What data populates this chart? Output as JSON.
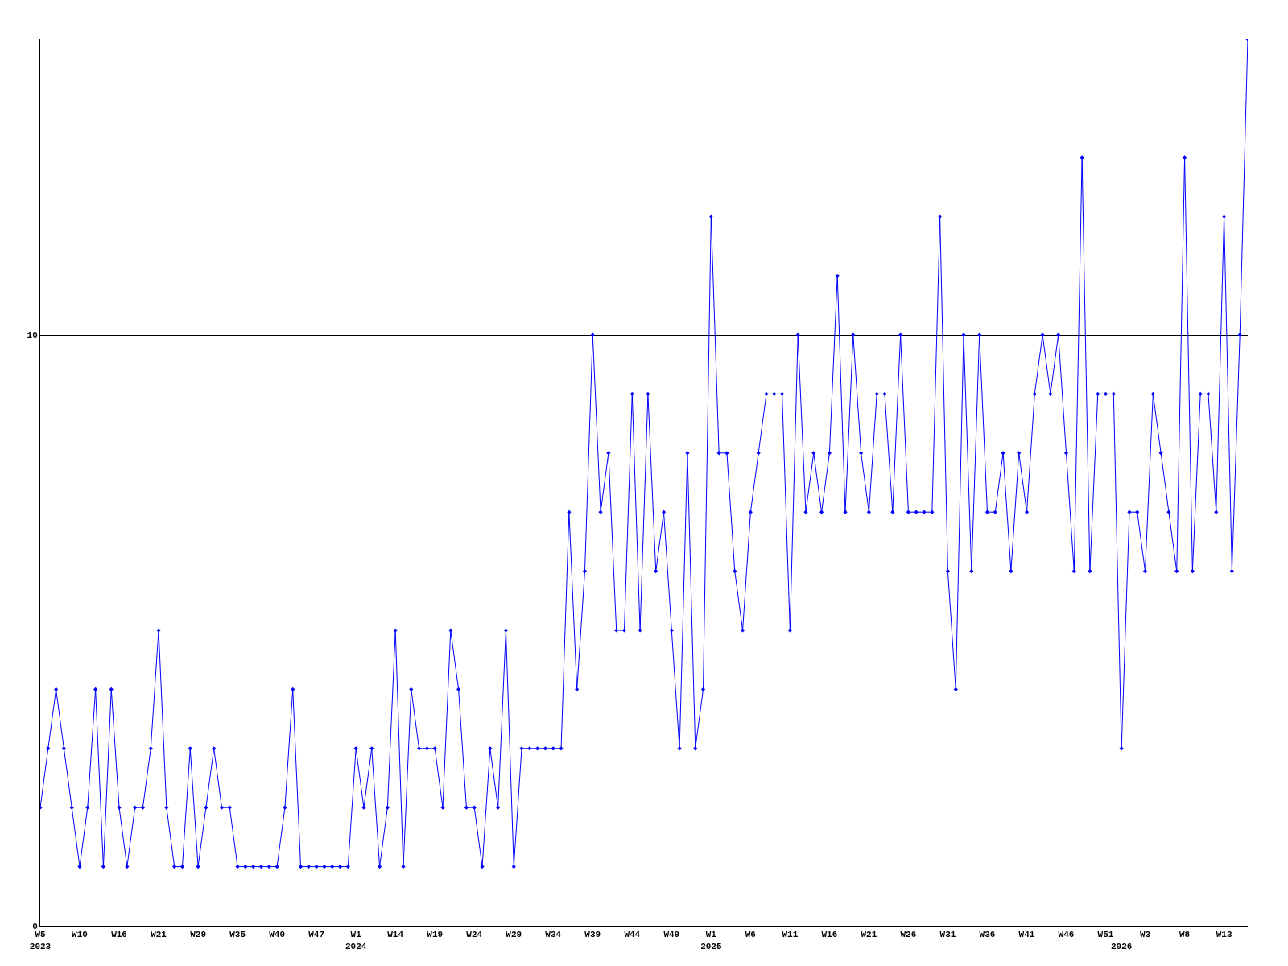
{
  "chart_data": {
    "type": "line",
    "categories": [
      "W5\n2023",
      null,
      null,
      null,
      null,
      "W10",
      null,
      null,
      null,
      null,
      "W16",
      null,
      null,
      null,
      null,
      "W21",
      null,
      null,
      null,
      null,
      "W29",
      null,
      null,
      null,
      null,
      "W35",
      null,
      null,
      null,
      null,
      "W40",
      null,
      null,
      null,
      null,
      "W47",
      null,
      null,
      null,
      null,
      "W1\n2024",
      null,
      null,
      null,
      null,
      "W14",
      null,
      null,
      null,
      null,
      "W19",
      null,
      null,
      null,
      null,
      "W24",
      null,
      null,
      null,
      null,
      "W29",
      null,
      null,
      null,
      null,
      "W34",
      null,
      null,
      null,
      null,
      "W39",
      null,
      null,
      null,
      null,
      "W44",
      null,
      null,
      null,
      null,
      "W49",
      null,
      null,
      null,
      null,
      "W1\n2025",
      null,
      null,
      null,
      null,
      "W6",
      null,
      null,
      null,
      null,
      "W11",
      null,
      null,
      null,
      null,
      "W16",
      null,
      null,
      null,
      null,
      "W21",
      null,
      null,
      null,
      null,
      "W26",
      null,
      null,
      null,
      null,
      "W31",
      null,
      null,
      null,
      null,
      "W36",
      null,
      null,
      null,
      null,
      "W41",
      null,
      null,
      null,
      null,
      "W46",
      null,
      null,
      null,
      null,
      "W51",
      null,
      "\n2026",
      null,
      null,
      "W3",
      null,
      null,
      null,
      null,
      "W8",
      null,
      null,
      null,
      null,
      "W13",
      null,
      null,
      null
    ],
    "series": [
      {
        "color": "#0000ff",
        "values": [
          2,
          3,
          4,
          3,
          2,
          1,
          2,
          4,
          1,
          4,
          2,
          1,
          2,
          2,
          3,
          5,
          2,
          1,
          1,
          3,
          1,
          2,
          3,
          2,
          2,
          1,
          1,
          1,
          1,
          1,
          1,
          2,
          4,
          1,
          1,
          1,
          1,
          1,
          1,
          1,
          3,
          2,
          3,
          1,
          2,
          5,
          1,
          4,
          3,
          3,
          3,
          2,
          5,
          4,
          2,
          2,
          1,
          3,
          2,
          5,
          1,
          3,
          3,
          3,
          3,
          3,
          3,
          7,
          4,
          6,
          10,
          7,
          8,
          5,
          5,
          9,
          5,
          9,
          6,
          7,
          5,
          3,
          8,
          3,
          4,
          12,
          8,
          8,
          6,
          5,
          7,
          8,
          9,
          9,
          9,
          5,
          10,
          7,
          8,
          7,
          8,
          11,
          7,
          10,
          8,
          7,
          9,
          9,
          7,
          10,
          7,
          7,
          7,
          7,
          12,
          6,
          4,
          10,
          6,
          10,
          7,
          7,
          8,
          6,
          8,
          7,
          9,
          10,
          9,
          10,
          8,
          6,
          13,
          6,
          9,
          9,
          9,
          3,
          7,
          7,
          6,
          9,
          8,
          7,
          6,
          13,
          6,
          9,
          9,
          7,
          12,
          6,
          10,
          15
        ]
      }
    ],
    "ylim": [
      0,
      15
    ],
    "yticks": [
      0,
      10
    ],
    "grid": "y",
    "marker": "diamond",
    "line_style": "solid"
  }
}
